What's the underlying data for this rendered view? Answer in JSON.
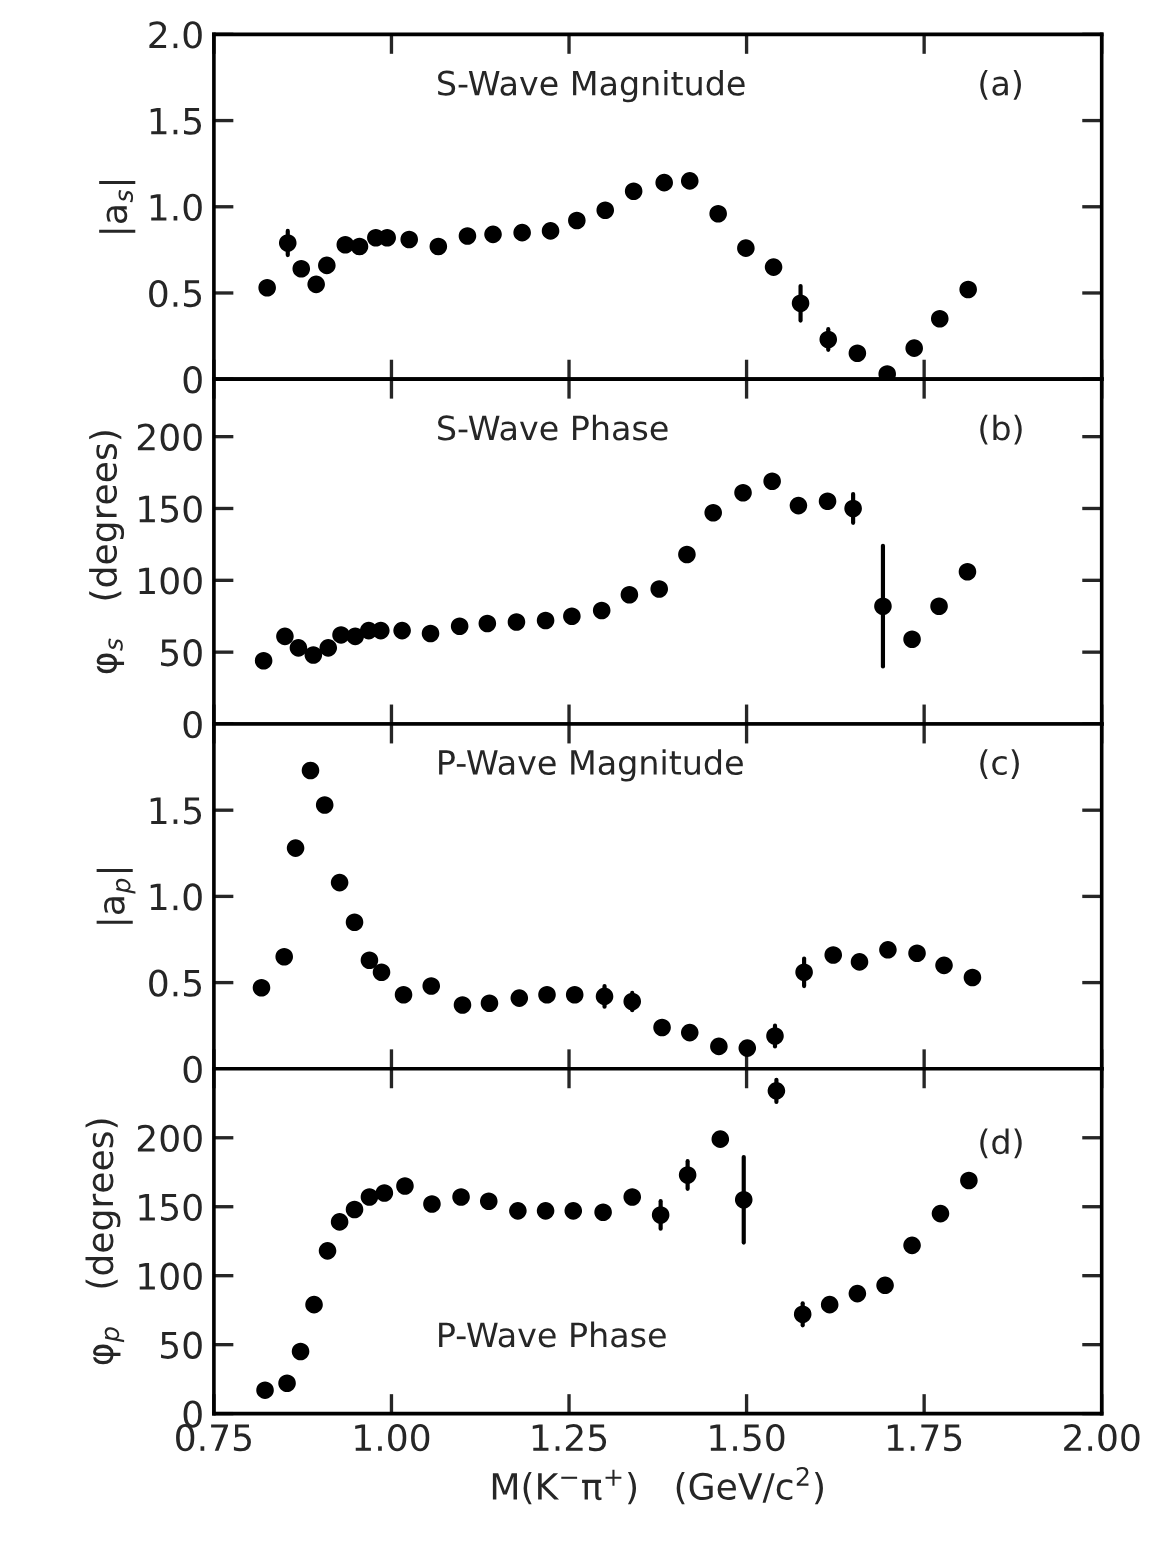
{
  "chart_data": [
    {
      "type": "scatter",
      "ylabel": "|a$_{s}$|",
      "annotations": [
        "S-Wave Magnitude",
        "(a)"
      ],
      "marker": "circle",
      "grid": false,
      "tick_labels": "y",
      "xlim": [
        0.75,
        2.0
      ],
      "xticks": [
        {
          "value": 0.75,
          "label": null
        },
        {
          "value": 1.0,
          "label": null
        },
        {
          "value": 1.25,
          "label": null
        },
        {
          "value": 1.5,
          "label": null
        },
        {
          "value": 1.75,
          "label": null
        },
        {
          "value": 2.0,
          "label": null
        }
      ],
      "ylim": [
        0,
        2.0
      ],
      "yticks": [
        {
          "value": 0,
          "label": "0"
        },
        {
          "value": 0.5,
          "label": "0.5"
        },
        {
          "value": 1.0,
          "label": "1.0"
        },
        {
          "value": 1.5,
          "label": "1.5"
        },
        {
          "value": 2.0,
          "label": "2.0"
        }
      ],
      "series": [
        {
          "color": "#000000",
          "x": [
            0.825,
            0.854,
            0.873,
            0.894,
            0.909,
            0.935,
            0.955,
            0.978,
            0.994,
            1.025,
            1.066,
            1.107,
            1.143,
            1.184,
            1.224,
            1.261,
            1.301,
            1.341,
            1.384,
            1.42,
            1.46,
            1.499,
            1.538,
            1.576,
            1.615,
            1.656,
            1.698,
            1.736,
            1.772,
            1.812
          ],
          "values": [
            0.53,
            0.79,
            0.64,
            0.55,
            0.66,
            0.78,
            0.77,
            0.82,
            0.82,
            0.81,
            0.77,
            0.83,
            0.84,
            0.85,
            0.86,
            0.92,
            0.98,
            1.09,
            1.14,
            1.15,
            0.96,
            0.76,
            0.65,
            0.44,
            0.23,
            0.15,
            0.03,
            0.18,
            0.35,
            0.52
          ],
          "errors": [
            null,
            0.07,
            null,
            null,
            null,
            null,
            null,
            null,
            null,
            null,
            null,
            null,
            null,
            null,
            null,
            null,
            null,
            null,
            null,
            null,
            null,
            null,
            null,
            0.1,
            0.06,
            null,
            null,
            null,
            null,
            null
          ]
        }
      ]
    },
    {
      "type": "scatter",
      "ylabel": "φ$_{s}$   (degrees)",
      "annotations": [
        "S-Wave Phase",
        "(b)"
      ],
      "marker": "circle",
      "grid": false,
      "tick_labels": "y",
      "xlim": [
        0.75,
        2.0
      ],
      "xticks": [
        {
          "value": 0.75,
          "label": null
        },
        {
          "value": 1.0,
          "label": null
        },
        {
          "value": 1.25,
          "label": null
        },
        {
          "value": 1.5,
          "label": null
        },
        {
          "value": 1.75,
          "label": null
        },
        {
          "value": 2.0,
          "label": null
        }
      ],
      "ylim": [
        0,
        240
      ],
      "yticks": [
        0,
        50,
        100,
        150,
        200
      ],
      "series": [
        {
          "color": "#000000",
          "x": [
            0.82,
            0.85,
            0.869,
            0.89,
            0.911,
            0.929,
            0.949,
            0.968,
            0.985,
            1.015,
            1.055,
            1.096,
            1.135,
            1.176,
            1.217,
            1.254,
            1.296,
            1.335,
            1.377,
            1.416,
            1.453,
            1.495,
            1.536,
            1.573,
            1.614,
            1.65,
            1.692,
            1.733,
            1.771,
            1.811
          ],
          "values": [
            44,
            61,
            53,
            48,
            53,
            62,
            61,
            65,
            65,
            65,
            63,
            68,
            70,
            71,
            72,
            75,
            79,
            90,
            94,
            118,
            147,
            161,
            169,
            152,
            155,
            150,
            82,
            59,
            82,
            106
          ],
          "errors": [
            null,
            null,
            null,
            null,
            null,
            null,
            null,
            null,
            null,
            null,
            null,
            null,
            null,
            null,
            null,
            null,
            null,
            null,
            null,
            null,
            null,
            null,
            null,
            null,
            null,
            10,
            42,
            null,
            null,
            null
          ]
        }
      ]
    },
    {
      "type": "scatter",
      "ylabel": "|a$_{p}$|",
      "annotations": [
        "P-Wave Magnitude",
        "(c)"
      ],
      "marker": "circle",
      "grid": false,
      "tick_labels": "y",
      "xlim": [
        0.75,
        2.0
      ],
      "xticks": [
        {
          "value": 0.75,
          "label": null
        },
        {
          "value": 1.0,
          "label": null
        },
        {
          "value": 1.25,
          "label": null
        },
        {
          "value": 1.5,
          "label": null
        },
        {
          "value": 1.75,
          "label": null
        },
        {
          "value": 2.0,
          "label": null
        }
      ],
      "ylim": [
        0,
        2.0
      ],
      "yticks": [
        {
          "value": 0,
          "label": "0"
        },
        {
          "value": 0.5,
          "label": "0.5"
        },
        {
          "value": 1.0,
          "label": "1.0"
        },
        {
          "value": 1.5,
          "label": "1.5"
        }
      ],
      "series": [
        {
          "color": "#000000",
          "x": [
            0.817,
            0.849,
            0.865,
            0.886,
            0.906,
            0.927,
            0.948,
            0.969,
            0.986,
            1.017,
            1.056,
            1.1,
            1.138,
            1.18,
            1.219,
            1.258,
            1.3,
            1.339,
            1.381,
            1.42,
            1.461,
            1.501,
            1.54,
            1.581,
            1.622,
            1.659,
            1.699,
            1.74,
            1.778,
            1.818
          ],
          "values": [
            0.47,
            0.65,
            1.28,
            1.73,
            1.53,
            1.08,
            0.85,
            0.63,
            0.56,
            0.43,
            0.48,
            0.37,
            0.38,
            0.41,
            0.43,
            0.43,
            0.42,
            0.39,
            0.24,
            0.21,
            0.13,
            0.12,
            0.19,
            0.56,
            0.66,
            0.62,
            0.69,
            0.67,
            0.6,
            0.53
          ],
          "errors": [
            null,
            null,
            null,
            null,
            null,
            null,
            null,
            null,
            null,
            null,
            null,
            null,
            null,
            null,
            null,
            null,
            0.06,
            0.05,
            null,
            null,
            null,
            null,
            0.06,
            0.08,
            null,
            null,
            null,
            null,
            null,
            null
          ]
        }
      ]
    },
    {
      "type": "scatter",
      "xlabel": "M(K$^{−}$π$^{+}$)   (GeV/c$^{2}$)",
      "ylabel": "φ$_{p}$   (degrees)",
      "annotations": [
        "P-Wave Phase",
        "(d)"
      ],
      "marker": "circle",
      "grid": false,
      "xlim": [
        0.75,
        2.0
      ],
      "xticks": [
        {
          "value": 0.75,
          "label": "0.75"
        },
        {
          "value": 1.0,
          "label": "1.00"
        },
        {
          "value": 1.25,
          "label": "1.25"
        },
        {
          "value": 1.5,
          "label": "1.50"
        },
        {
          "value": 1.75,
          "label": "1.75"
        },
        {
          "value": 2.0,
          "label": "2.00"
        }
      ],
      "ylim": [
        0,
        250
      ],
      "yticks": [
        0,
        50,
        100,
        150,
        200
      ],
      "series": [
        {
          "color": "#000000",
          "x": [
            0.822,
            0.853,
            0.872,
            0.891,
            0.91,
            0.927,
            0.948,
            0.969,
            0.99,
            1.019,
            1.057,
            1.098,
            1.137,
            1.178,
            1.217,
            1.256,
            1.298,
            1.339,
            1.379,
            1.417,
            1.463,
            1.496,
            1.542,
            1.579,
            1.617,
            1.656,
            1.695,
            1.733,
            1.773,
            1.813
          ],
          "values": [
            17,
            22,
            45,
            79,
            118,
            139,
            148,
            157,
            160,
            165,
            152,
            157,
            154,
            147,
            147,
            147,
            146,
            157,
            144,
            173,
            199,
            155,
            234,
            72,
            79,
            87,
            93,
            122,
            145,
            169
          ],
          "errors": [
            null,
            null,
            null,
            null,
            null,
            null,
            null,
            null,
            null,
            null,
            null,
            null,
            null,
            null,
            null,
            null,
            null,
            null,
            10,
            10,
            null,
            31,
            8,
            8,
            null,
            null,
            null,
            null,
            null,
            null
          ]
        }
      ]
    }
  ]
}
